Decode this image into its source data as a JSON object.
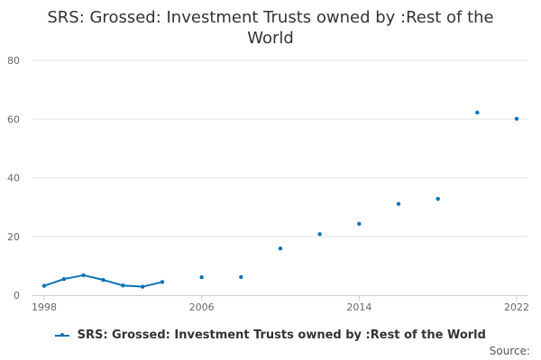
{
  "title_line1": "SRS: Grossed: Investment Trusts owned by :Rest of the",
  "title_line2": "World",
  "source_label": "Source:",
  "chart_data": {
    "type": "line",
    "title": "SRS: Grossed: Investment Trusts owned by :Rest of the World",
    "xlabel": "",
    "ylabel": "",
    "x_ticks": [
      1998,
      2006,
      2014,
      2022
    ],
    "y_ticks": [
      0,
      20,
      40,
      60,
      80
    ],
    "xlim": [
      1998,
      2022
    ],
    "ylim": [
      0,
      80
    ],
    "grid": "horizontal",
    "legend_position": "bottom",
    "series": [
      {
        "name": "SRS: Grossed: Investment Trusts owned by :Rest of the World",
        "color": "#0a72b7",
        "points": [
          {
            "x": 1998,
            "y": 3.2
          },
          {
            "x": 1999,
            "y": 5.5
          },
          {
            "x": 2000,
            "y": 6.8
          },
          {
            "x": 2001,
            "y": 5.2
          },
          {
            "x": 2002,
            "y": 3.3
          },
          {
            "x": 2003,
            "y": 2.9
          },
          {
            "x": 2004,
            "y": 4.5
          },
          {
            "x": 2006,
            "y": 6.1
          },
          {
            "x": 2008,
            "y": 6.2
          },
          {
            "x": 2010,
            "y": 15.9
          },
          {
            "x": 2012,
            "y": 20.8
          },
          {
            "x": 2014,
            "y": 24.3
          },
          {
            "x": 2016,
            "y": 31.1
          },
          {
            "x": 2018,
            "y": 32.8
          },
          {
            "x": 2020,
            "y": 62.2
          },
          {
            "x": 2022,
            "y": 60.1
          }
        ]
      }
    ]
  }
}
